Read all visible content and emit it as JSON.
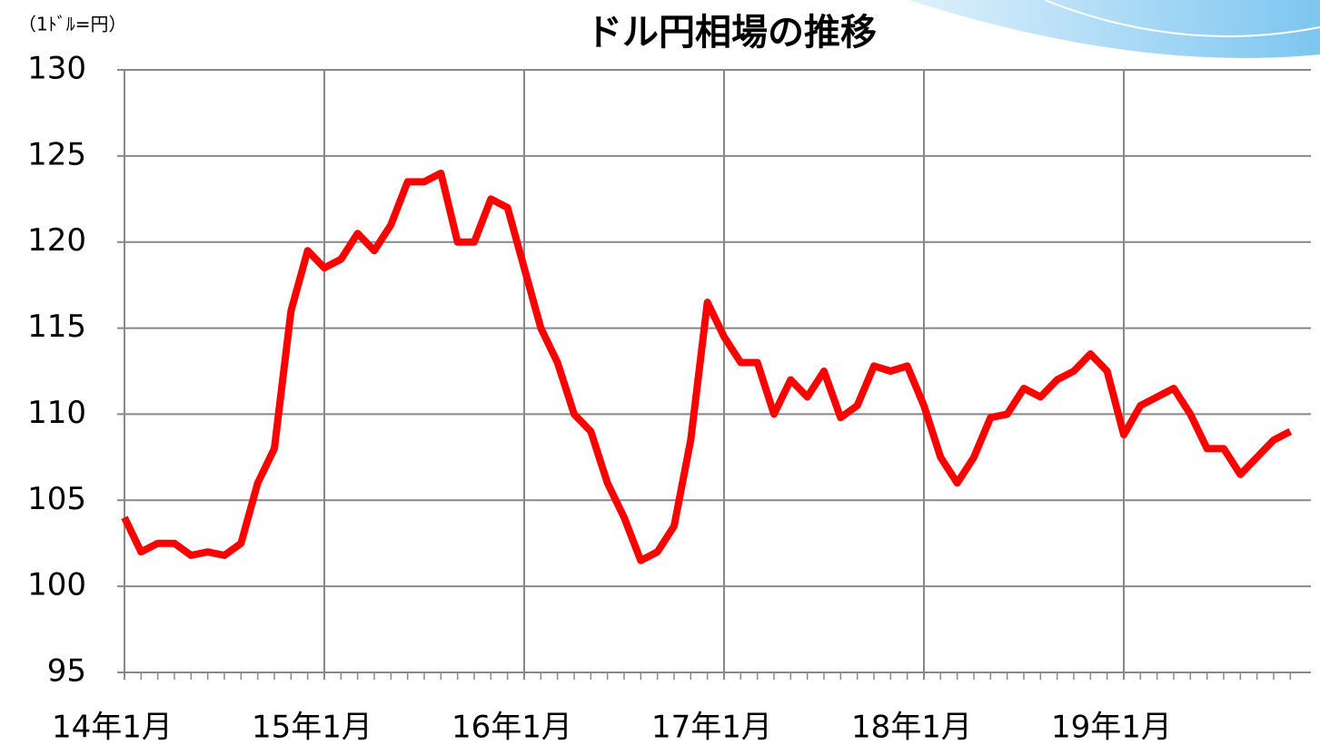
{
  "chart_data": {
    "type": "line",
    "title": "ドル円相場の推移",
    "y_axis_label": "（1ﾄﾞﾙ=円）",
    "categories": [
      "14年1月",
      null,
      null,
      null,
      null,
      null,
      null,
      null,
      null,
      null,
      null,
      null,
      "15年1月",
      null,
      null,
      null,
      null,
      null,
      null,
      null,
      null,
      null,
      null,
      null,
      "16年1月",
      null,
      null,
      null,
      null,
      null,
      null,
      null,
      null,
      null,
      null,
      null,
      "17年1月",
      null,
      null,
      null,
      null,
      null,
      null,
      null,
      null,
      null,
      null,
      null,
      "18年1月",
      null,
      null,
      null,
      null,
      null,
      null,
      null,
      null,
      null,
      null,
      null,
      "19年1月",
      null,
      null,
      null,
      null,
      null,
      null,
      null,
      null,
      null,
      null
    ],
    "series": [
      {
        "color": "#ff0000",
        "values": [
          104,
          102,
          102.5,
          102.5,
          101.8,
          102,
          101.8,
          102.5,
          106,
          108,
          116,
          119.5,
          118.5,
          119,
          120.5,
          119.5,
          121,
          123.5,
          123.5,
          124,
          120,
          120,
          122.5,
          122,
          118.5,
          115,
          113,
          110,
          109,
          106,
          104,
          101.5,
          102,
          103.5,
          108.5,
          116.5,
          114.5,
          113,
          113,
          110,
          112,
          111,
          112.5,
          109.8,
          110.5,
          112.8,
          112.5,
          112.8,
          110.5,
          107.5,
          106,
          107.5,
          109.8,
          110,
          111.5,
          111,
          112,
          112.5,
          113.5,
          112.5,
          108.8,
          110.5,
          111,
          111.5,
          110,
          108,
          108,
          106.5,
          107.5,
          108.5,
          109
        ]
      }
    ],
    "ylim": [
      95,
      130
    ],
    "yticks": [
      95,
      100,
      105,
      110,
      115,
      120,
      125,
      130
    ],
    "grid": true
  }
}
